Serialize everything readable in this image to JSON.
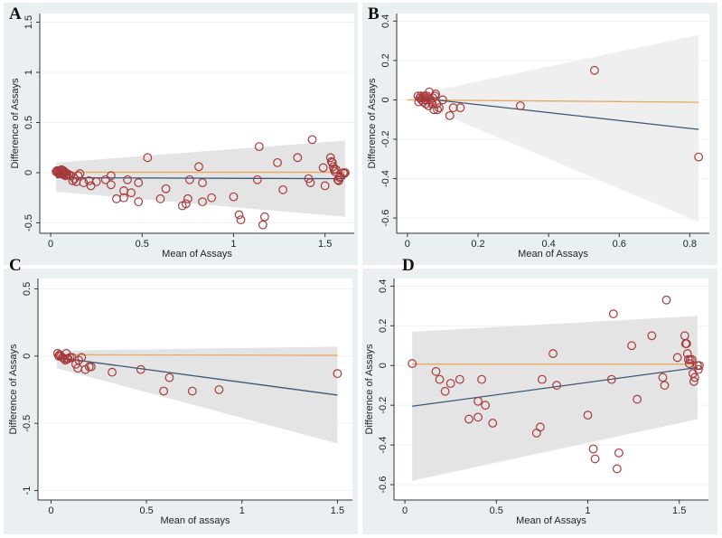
{
  "figure": {
    "panel_labels": [
      "A",
      "B",
      "C",
      "D"
    ]
  },
  "colors": {
    "panel_background": "#eaf0f2",
    "plot_background": "#ffffff",
    "ci_band": "#e4e4e4",
    "reference_line": "#e8a862",
    "regression_line": "#3b5877",
    "marker_stroke": "#a6393c",
    "gridline": "#eef2f3"
  },
  "chart_data": [
    {
      "panel": "A",
      "type": "scatter",
      "title": "",
      "xlabel": "Mean of Assays",
      "ylabel": "Difference of Assays",
      "xlim": [
        -0.03,
        1.63
      ],
      "ylim": [
        -0.55,
        1.55
      ],
      "xticks": [
        0,
        0.5,
        1,
        1.5
      ],
      "xtick_labels": [
        "0",
        "0.5",
        "1",
        "1.5"
      ],
      "yticks": [
        -0.5,
        0,
        0.5,
        1,
        1.5
      ],
      "ytick_labels": [
        "-0.5",
        "0",
        "0.5",
        "1",
        "1.5"
      ],
      "grid": true,
      "reference_line": {
        "y": 0.005
      },
      "regression_line": {
        "x": [
          0.03,
          1.61
        ],
        "y": [
          -0.05,
          -0.06
        ]
      },
      "ci_band": {
        "x": [
          0.03,
          1.61
        ],
        "upper": [
          0.1,
          0.32
        ],
        "lower": [
          -0.19,
          -0.44
        ]
      },
      "points": {
        "x": [
          0.03,
          0.035,
          0.04,
          0.04,
          0.045,
          0.05,
          0.05,
          0.055,
          0.06,
          0.06,
          0.065,
          0.07,
          0.07,
          0.075,
          0.08,
          0.08,
          0.085,
          0.09,
          0.1,
          0.11,
          0.12,
          0.13,
          0.14,
          0.15,
          0.16,
          0.18,
          0.21,
          0.22,
          0.25,
          0.3,
          0.33,
          0.33,
          0.36,
          0.4,
          0.4,
          0.42,
          0.44,
          0.48,
          0.48,
          0.53,
          0.6,
          0.63,
          0.72,
          0.74,
          0.75,
          0.76,
          0.81,
          0.83,
          0.83,
          0.88,
          1.0,
          1.03,
          1.04,
          1.13,
          1.14,
          1.16,
          1.17,
          1.24,
          1.27,
          1.35,
          1.41,
          1.42,
          1.43,
          1.49,
          1.5,
          1.53,
          1.535,
          1.54,
          1.545,
          1.55,
          1.555,
          1.56,
          1.57,
          1.575,
          1.58,
          1.585,
          1.6,
          1.605,
          1.61
        ],
        "y": [
          0.01,
          0.02,
          0.0,
          0.01,
          -0.01,
          0.02,
          0.0,
          -0.01,
          0.01,
          0.03,
          0.0,
          0.02,
          -0.02,
          0.01,
          -0.03,
          0.0,
          -0.02,
          -0.01,
          -0.02,
          -0.03,
          -0.08,
          -0.06,
          -0.09,
          -0.03,
          -0.01,
          -0.1,
          -0.08,
          -0.13,
          -0.09,
          -0.07,
          -0.03,
          -0.12,
          -0.26,
          -0.18,
          -0.25,
          -0.07,
          -0.2,
          -0.1,
          -0.29,
          0.15,
          -0.26,
          -0.16,
          -0.33,
          -0.31,
          -0.26,
          -0.07,
          0.06,
          -0.1,
          -0.29,
          -0.25,
          -0.24,
          -0.42,
          -0.47,
          -0.07,
          0.26,
          -0.52,
          -0.44,
          0.1,
          -0.17,
          0.15,
          -0.06,
          -0.1,
          0.33,
          0.05,
          -0.13,
          0.15,
          0.11,
          0.1,
          0.06,
          0.03,
          0.01,
          0.03,
          -0.07,
          -0.08,
          -0.05,
          -0.04,
          0.0,
          -0.01,
          0.0
        ]
      }
    },
    {
      "panel": "B",
      "type": "scatter",
      "title": "",
      "xlabel": "Mean of Assays",
      "ylabel": "Difference of Assays",
      "xlim": [
        -0.015,
        0.84
      ],
      "ylim": [
        -0.65,
        0.42
      ],
      "xticks": [
        0,
        0.2,
        0.4,
        0.6,
        0.8
      ],
      "xtick_labels": [
        "0",
        "0.2",
        "0.4",
        "0.6",
        "0.8"
      ],
      "yticks": [
        -0.6,
        -0.4,
        -0.2,
        0,
        0.2,
        0.4
      ],
      "ytick_labels": [
        "-0.6",
        "-0.4",
        "-0.2",
        "0",
        "0.2",
        "0.4"
      ],
      "grid": true,
      "reference_line": {
        "x": [
          0.0,
          0.825
        ],
        "y": [
          0.0,
          -0.012
        ]
      },
      "regression_line": {
        "x": [
          0.03,
          0.825
        ],
        "y": [
          0.01,
          -0.15
        ]
      },
      "ci_band": {
        "x": [
          0.03,
          0.825
        ],
        "upper": [
          0.03,
          0.33
        ],
        "lower": [
          -0.02,
          -0.62
        ]
      },
      "points": {
        "x": [
          0.03,
          0.032,
          0.035,
          0.038,
          0.04,
          0.042,
          0.045,
          0.048,
          0.05,
          0.052,
          0.055,
          0.058,
          0.06,
          0.062,
          0.065,
          0.068,
          0.07,
          0.072,
          0.075,
          0.078,
          0.08,
          0.083,
          0.085,
          0.09,
          0.1,
          0.12,
          0.13,
          0.15,
          0.32,
          0.53,
          0.825
        ],
        "y": [
          0.02,
          -0.01,
          0.01,
          0.02,
          0.0,
          0.01,
          -0.01,
          0.02,
          0.0,
          -0.02,
          0.02,
          0.01,
          -0.03,
          0.04,
          0.0,
          -0.01,
          -0.02,
          0.01,
          -0.05,
          0.02,
          0.03,
          -0.02,
          -0.05,
          -0.04,
          0.0,
          -0.08,
          -0.04,
          -0.04,
          -0.03,
          0.15,
          -0.29
        ]
      }
    },
    {
      "panel": "C",
      "type": "scatter",
      "title": "",
      "xlabel": "Mean of assays",
      "ylabel": "Difference of Assays",
      "xlim": [
        -0.04,
        1.55
      ],
      "ylim": [
        -1.03,
        0.55
      ],
      "xticks": [
        0,
        0.5,
        1,
        1.5
      ],
      "xtick_labels": [
        "0",
        "0.5",
        "1",
        "1.5"
      ],
      "yticks": [
        -1,
        -0.5,
        0,
        0.5
      ],
      "ytick_labels": [
        "-1",
        "-0.5",
        "0",
        "0.5"
      ],
      "grid": true,
      "reference_line": {
        "x": [
          0.03,
          1.5
        ],
        "y": [
          0.01,
          0.005
        ]
      },
      "regression_line": {
        "x": [
          0.03,
          1.5
        ],
        "y": [
          -0.01,
          -0.29
        ]
      },
      "ci_band": {
        "x": [
          0.03,
          1.5
        ],
        "upper": [
          0.04,
          0.07
        ],
        "lower": [
          -0.09,
          -0.65
        ]
      },
      "points": {
        "x": [
          0.035,
          0.04,
          0.045,
          0.05,
          0.06,
          0.07,
          0.075,
          0.08,
          0.085,
          0.09,
          0.1,
          0.11,
          0.13,
          0.14,
          0.145,
          0.16,
          0.18,
          0.2,
          0.21,
          0.32,
          0.47,
          0.59,
          0.62,
          0.74,
          0.88,
          1.5
        ],
        "y": [
          0.02,
          0.0,
          0.01,
          0.0,
          -0.01,
          -0.02,
          -0.03,
          0.02,
          -0.02,
          -0.02,
          -0.01,
          -0.01,
          -0.06,
          -0.09,
          -0.03,
          -0.01,
          -0.1,
          -0.08,
          -0.08,
          -0.12,
          -0.1,
          -0.26,
          -0.16,
          -0.26,
          -0.25,
          -0.13
        ]
      }
    },
    {
      "panel": "D",
      "type": "scatter",
      "title": "",
      "xlabel": "Mean of Assays",
      "ylabel": "Difference of Assays",
      "xlim": [
        -0.03,
        1.63
      ],
      "ylim": [
        -0.65,
        0.42
      ],
      "xticks": [
        0,
        0.5,
        1,
        1.5
      ],
      "xtick_labels": [
        "0",
        "0.5",
        "1",
        "1.5"
      ],
      "yticks": [
        -0.6,
        -0.4,
        -0.2,
        0,
        0.2,
        0.4
      ],
      "ytick_labels": [
        "-0.6",
        "-0.4",
        "-0.2",
        "0",
        "0.2",
        "0.4"
      ],
      "grid": true,
      "reference_line": {
        "y": 0.007
      },
      "regression_line": {
        "x": [
          0.04,
          1.6
        ],
        "y": [
          -0.205,
          -0.01
        ]
      },
      "ci_band": {
        "x": [
          0.04,
          1.6
        ],
        "upper": [
          0.17,
          0.25
        ],
        "lower": [
          -0.58,
          -0.27
        ]
      },
      "points": {
        "x": [
          0.04,
          0.17,
          0.19,
          0.22,
          0.25,
          0.3,
          0.35,
          0.4,
          0.4,
          0.42,
          0.44,
          0.48,
          0.72,
          0.74,
          0.75,
          0.81,
          0.83,
          1.0,
          1.03,
          1.04,
          1.13,
          1.14,
          1.16,
          1.17,
          1.24,
          1.27,
          1.35,
          1.41,
          1.42,
          1.43,
          1.49,
          1.53,
          1.535,
          1.54,
          1.545,
          1.55,
          1.555,
          1.56,
          1.57,
          1.575,
          1.58,
          1.585,
          1.6,
          1.605,
          1.61
        ],
        "y": [
          0.01,
          -0.03,
          -0.07,
          -0.13,
          -0.09,
          -0.07,
          -0.27,
          -0.18,
          -0.26,
          -0.07,
          -0.2,
          -0.29,
          -0.34,
          -0.31,
          -0.07,
          0.06,
          -0.1,
          -0.25,
          -0.42,
          -0.47,
          -0.07,
          0.26,
          -0.52,
          -0.44,
          0.1,
          -0.17,
          0.15,
          -0.06,
          -0.1,
          0.33,
          0.04,
          0.15,
          0.11,
          0.11,
          0.06,
          0.03,
          0.01,
          0.03,
          0.03,
          -0.04,
          -0.08,
          -0.06,
          0.0,
          -0.02,
          0.0
        ]
      }
    }
  ]
}
